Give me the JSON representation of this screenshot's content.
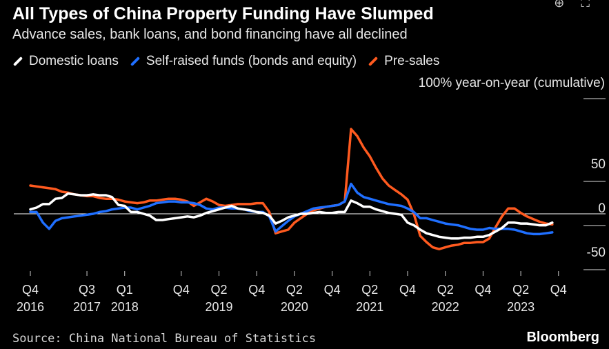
{
  "title": "All Types of China Property Funding Have Slumped",
  "subtitle": "Advance sales, bank loans, and bond financing have all declined",
  "unit_label": "100% year-on-year (cumulative)",
  "source": "Source: China National Bureau of Statistics",
  "brand": "Bloomberg",
  "icons": {
    "zoom": "zoom-in-icon",
    "expand": "expand-icon"
  },
  "chart_data": {
    "type": "line",
    "ylim": [
      -50,
      100
    ],
    "y_ticks": [
      50,
      0,
      -50
    ],
    "grid": false,
    "legend_position": "top-left",
    "x_ticks": [
      {
        "t": 0,
        "label": "Q4",
        "year": "2016"
      },
      {
        "t": 3,
        "label": "Q3",
        "year": "2017"
      },
      {
        "t": 5,
        "label": "Q1",
        "year": "2018"
      },
      {
        "t": 8,
        "label": "Q4",
        "year": ""
      },
      {
        "t": 10,
        "label": "Q2",
        "year": "2019"
      },
      {
        "t": 12,
        "label": "Q4",
        "year": ""
      },
      {
        "t": 14,
        "label": "Q2",
        "year": "2020"
      },
      {
        "t": 16,
        "label": "Q4",
        "year": ""
      },
      {
        "t": 18,
        "label": "Q2",
        "year": "2021"
      },
      {
        "t": 20,
        "label": "Q4",
        "year": ""
      },
      {
        "t": 22,
        "label": "Q2",
        "year": "2022"
      },
      {
        "t": 24,
        "label": "Q4",
        "year": ""
      },
      {
        "t": 26,
        "label": "Q2",
        "year": "2023"
      },
      {
        "t": 28,
        "label": "Q4",
        "year": ""
      }
    ],
    "series": [
      {
        "name": "Domestic loans",
        "color": "#ffffff",
        "points": [
          [
            0,
            5
          ],
          [
            0.33,
            7
          ],
          [
            0.67,
            11
          ],
          [
            1,
            11
          ],
          [
            1.33,
            17
          ],
          [
            1.67,
            18
          ],
          [
            2,
            23
          ],
          [
            2.33,
            22
          ],
          [
            2.67,
            21
          ],
          [
            3,
            21
          ],
          [
            3.33,
            22
          ],
          [
            3.67,
            21
          ],
          [
            4,
            21
          ],
          [
            4.33,
            19
          ],
          [
            4.67,
            10
          ],
          [
            5,
            9
          ],
          [
            5.33,
            2
          ],
          [
            5.67,
            2
          ],
          [
            6,
            0
          ],
          [
            6.33,
            -2
          ],
          [
            6.67,
            -7
          ],
          [
            7,
            -7
          ],
          [
            7.33,
            -6
          ],
          [
            7.67,
            -5
          ],
          [
            8,
            -4
          ],
          [
            8.33,
            -3
          ],
          [
            8.67,
            -4
          ],
          [
            9,
            -2
          ],
          [
            9.33,
            1
          ],
          [
            9.67,
            3
          ],
          [
            10,
            5
          ],
          [
            10.33,
            7
          ],
          [
            10.67,
            9
          ],
          [
            11,
            6
          ],
          [
            11.33,
            5
          ],
          [
            11.67,
            4
          ],
          [
            12,
            2
          ],
          [
            12.33,
            1
          ],
          [
            12.67,
            -2
          ],
          [
            13,
            -11
          ],
          [
            13.33,
            -8
          ],
          [
            13.67,
            -4
          ],
          [
            14,
            -2
          ],
          [
            14.33,
            0
          ],
          [
            14.67,
            0
          ],
          [
            15,
            1
          ],
          [
            15.33,
            2
          ],
          [
            15.67,
            1
          ],
          [
            16,
            1
          ],
          [
            16.33,
            2
          ],
          [
            16.67,
            2
          ],
          [
            17,
            15
          ],
          [
            17.33,
            12
          ],
          [
            17.67,
            8
          ],
          [
            18,
            8
          ],
          [
            18.33,
            5
          ],
          [
            18.67,
            3
          ],
          [
            19,
            1
          ],
          [
            19.33,
            0
          ],
          [
            19.67,
            -1
          ],
          [
            20,
            -10
          ],
          [
            20.33,
            -13
          ],
          [
            20.67,
            -18
          ],
          [
            21,
            -22
          ],
          [
            21.33,
            -24
          ],
          [
            21.67,
            -26
          ],
          [
            22,
            -27
          ],
          [
            22.33,
            -28
          ],
          [
            22.67,
            -28
          ],
          [
            23,
            -27
          ],
          [
            23.33,
            -27
          ],
          [
            23.67,
            -26
          ],
          [
            24,
            -26
          ],
          [
            24.33,
            -24
          ],
          [
            24.67,
            -20
          ],
          [
            25,
            -16
          ],
          [
            25.33,
            -10
          ],
          [
            25.67,
            -10
          ],
          [
            26,
            -11
          ],
          [
            26.33,
            -11
          ],
          [
            26.67,
            -12
          ],
          [
            27,
            -13
          ],
          [
            27.33,
            -13
          ],
          [
            27.67,
            -10
          ]
        ]
      },
      {
        "name": "Self-raised funds (bonds and equity)",
        "color": "#1f6fff",
        "points": [
          [
            0,
            2
          ],
          [
            0.33,
            2
          ],
          [
            0.67,
            -10
          ],
          [
            1,
            -17
          ],
          [
            1.33,
            -8
          ],
          [
            1.67,
            -5
          ],
          [
            2,
            -4
          ],
          [
            2.33,
            -3
          ],
          [
            2.67,
            -2
          ],
          [
            3,
            -1
          ],
          [
            3.33,
            0
          ],
          [
            3.67,
            2
          ],
          [
            4,
            3
          ],
          [
            4.33,
            5
          ],
          [
            4.67,
            6
          ],
          [
            5,
            7
          ],
          [
            5.33,
            7
          ],
          [
            5.67,
            5
          ],
          [
            6,
            7
          ],
          [
            6.33,
            9
          ],
          [
            6.67,
            12
          ],
          [
            7,
            13
          ],
          [
            7.33,
            14
          ],
          [
            7.67,
            14
          ],
          [
            8,
            13
          ],
          [
            8.33,
            13
          ],
          [
            8.67,
            12
          ],
          [
            9,
            10
          ],
          [
            9.33,
            6
          ],
          [
            9.67,
            5
          ],
          [
            10,
            7
          ],
          [
            10.33,
            7
          ],
          [
            10.67,
            6
          ],
          [
            11,
            6
          ],
          [
            11.33,
            5
          ],
          [
            11.67,
            3
          ],
          [
            12,
            2
          ],
          [
            12.33,
            2
          ],
          [
            12.67,
            -3
          ],
          [
            13,
            -20
          ],
          [
            13.33,
            -14
          ],
          [
            13.67,
            -8
          ],
          [
            14,
            -3
          ],
          [
            14.33,
            0
          ],
          [
            14.67,
            3
          ],
          [
            15,
            6
          ],
          [
            15.33,
            7
          ],
          [
            15.67,
            8
          ],
          [
            16,
            9
          ],
          [
            16.33,
            10
          ],
          [
            16.67,
            14
          ],
          [
            17,
            34
          ],
          [
            17.33,
            24
          ],
          [
            17.67,
            19
          ],
          [
            18,
            17
          ],
          [
            18.33,
            15
          ],
          [
            18.67,
            13
          ],
          [
            19,
            11
          ],
          [
            19.33,
            10
          ],
          [
            19.67,
            9
          ],
          [
            20,
            6
          ],
          [
            20.33,
            2
          ],
          [
            20.67,
            -5
          ],
          [
            21,
            -5
          ],
          [
            21.33,
            -7
          ],
          [
            21.67,
            -9
          ],
          [
            22,
            -11
          ],
          [
            22.33,
            -12
          ],
          [
            22.67,
            -13
          ],
          [
            23,
            -15
          ],
          [
            23.33,
            -17
          ],
          [
            23.67,
            -18
          ],
          [
            24,
            -18
          ],
          [
            24.33,
            -16
          ],
          [
            24.67,
            -17
          ],
          [
            25,
            -17
          ],
          [
            25.33,
            -17
          ],
          [
            25.67,
            -18
          ],
          [
            26,
            -20
          ],
          [
            26.33,
            -22
          ],
          [
            26.67,
            -23
          ],
          [
            27,
            -23
          ],
          [
            27.33,
            -22
          ],
          [
            27.67,
            -21
          ]
        ]
      },
      {
        "name": "Pre-sales",
        "color": "#ff5a1f",
        "points": [
          [
            0,
            32
          ],
          [
            0.33,
            31
          ],
          [
            0.67,
            30
          ],
          [
            1,
            29
          ],
          [
            1.33,
            28
          ],
          [
            1.67,
            25
          ],
          [
            2,
            24
          ],
          [
            2.33,
            22
          ],
          [
            2.67,
            21
          ],
          [
            3,
            20
          ],
          [
            3.33,
            20
          ],
          [
            3.67,
            18
          ],
          [
            4,
            17
          ],
          [
            4.33,
            17
          ],
          [
            4.67,
            16
          ],
          [
            5,
            14
          ],
          [
            5.33,
            13
          ],
          [
            5.67,
            12
          ],
          [
            6,
            13
          ],
          [
            6.33,
            15
          ],
          [
            6.67,
            15
          ],
          [
            7,
            16
          ],
          [
            7.33,
            17
          ],
          [
            7.67,
            17
          ],
          [
            8,
            16
          ],
          [
            8.33,
            14
          ],
          [
            8.67,
            9
          ],
          [
            9,
            13
          ],
          [
            9.33,
            17
          ],
          [
            9.67,
            14
          ],
          [
            10,
            10
          ],
          [
            10.33,
            9
          ],
          [
            10.67,
            10
          ],
          [
            11,
            11
          ],
          [
            11.33,
            11
          ],
          [
            11.67,
            11
          ],
          [
            12,
            12
          ],
          [
            12.33,
            12
          ],
          [
            12.67,
            2
          ],
          [
            13,
            -22
          ],
          [
            13.33,
            -20
          ],
          [
            13.67,
            -18
          ],
          [
            14,
            -10
          ],
          [
            14.33,
            -5
          ],
          [
            14.67,
            0
          ],
          [
            15,
            4
          ],
          [
            15.33,
            6
          ],
          [
            15.67,
            8
          ],
          [
            16,
            9
          ],
          [
            16.33,
            10
          ],
          [
            16.67,
            14
          ],
          [
            17,
            96
          ],
          [
            17.33,
            88
          ],
          [
            17.67,
            75
          ],
          [
            18,
            65
          ],
          [
            18.33,
            52
          ],
          [
            18.67,
            40
          ],
          [
            19,
            32
          ],
          [
            19.33,
            27
          ],
          [
            19.67,
            22
          ],
          [
            20,
            16
          ],
          [
            20.33,
            0
          ],
          [
            20.67,
            -25
          ],
          [
            21,
            -32
          ],
          [
            21.33,
            -38
          ],
          [
            21.67,
            -40
          ],
          [
            22,
            -38
          ],
          [
            22.33,
            -36
          ],
          [
            22.67,
            -35
          ],
          [
            23,
            -33
          ],
          [
            23.33,
            -33
          ],
          [
            23.67,
            -32
          ],
          [
            24,
            -32
          ],
          [
            24.33,
            -28
          ],
          [
            24.67,
            -15
          ],
          [
            25,
            -3
          ],
          [
            25.33,
            6
          ],
          [
            25.67,
            6
          ],
          [
            26,
            1
          ],
          [
            26.33,
            -3
          ],
          [
            26.67,
            -6
          ],
          [
            27,
            -9
          ],
          [
            27.33,
            -11
          ],
          [
            27.67,
            -12
          ]
        ]
      }
    ]
  }
}
